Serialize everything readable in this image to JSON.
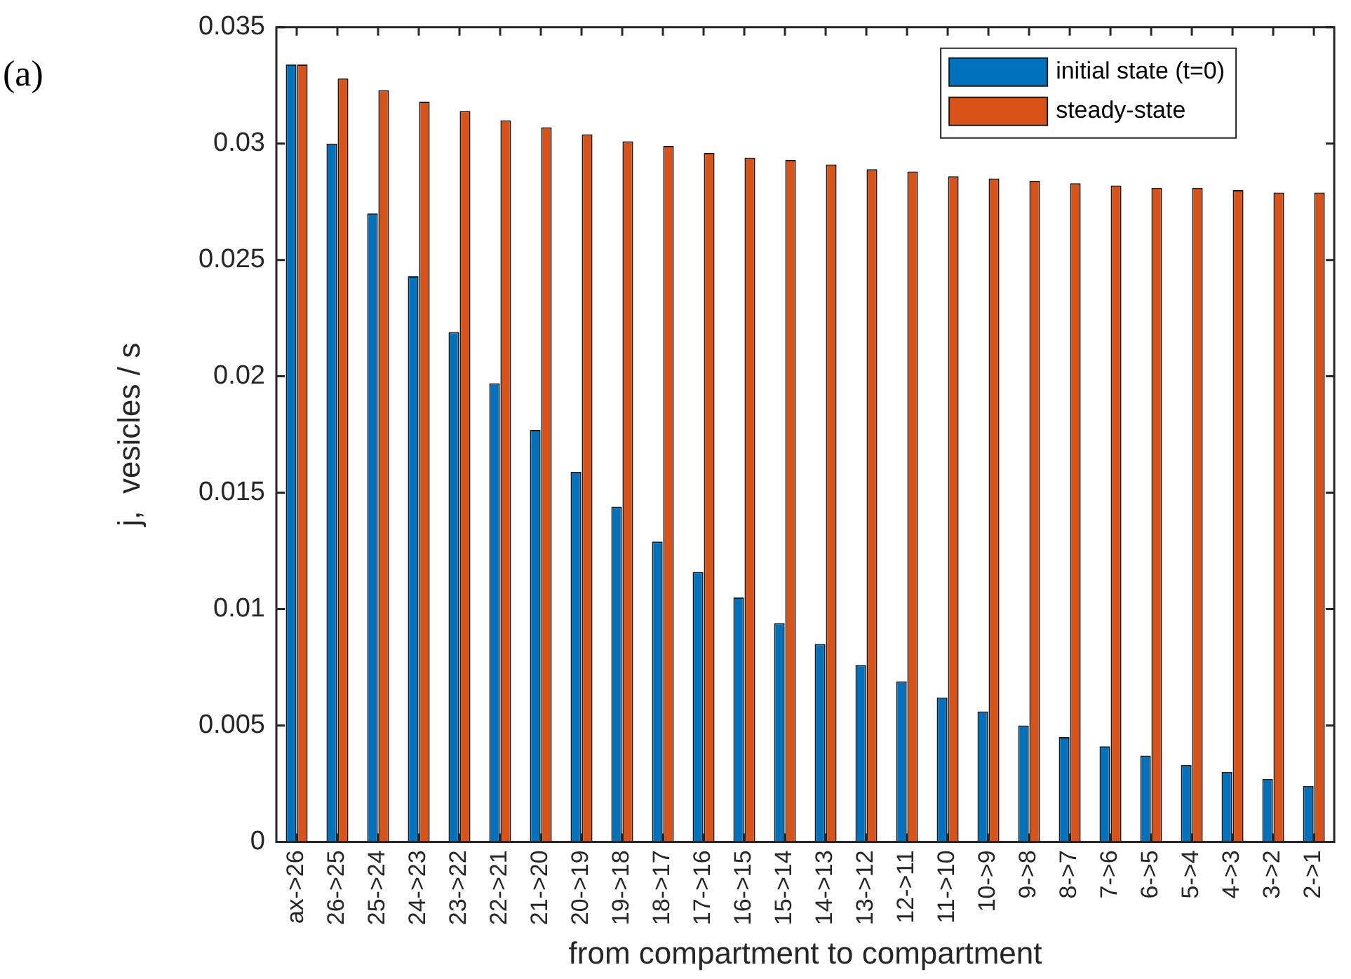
{
  "chart_data": {
    "type": "bar",
    "xlabel": "from compartment to compartment",
    "ylabel": "j,  vesicles / s",
    "categories": [
      "ax->26",
      "26->25",
      "25->24",
      "24->23",
      "23->22",
      "22->21",
      "21->20",
      "20->19",
      "19->18",
      "18->17",
      "17->16",
      "16->15",
      "15->14",
      "14->13",
      "13->12",
      "12->11",
      "11->10",
      "10->9",
      "9->8",
      "8->7",
      "7->6",
      "6->5",
      "5->4",
      "4->3",
      "3->2",
      "2->1"
    ],
    "series": [
      {
        "name": "initial state (t=0)",
        "color": "#0072bd",
        "values": [
          0.0334,
          0.03,
          0.027,
          0.0243,
          0.0219,
          0.0197,
          0.0177,
          0.0159,
          0.0144,
          0.0129,
          0.0116,
          0.0105,
          0.0094,
          0.0085,
          0.0076,
          0.0069,
          0.0062,
          0.0056,
          0.005,
          0.0045,
          0.0041,
          0.0037,
          0.0033,
          0.003,
          0.0027,
          0.0024
        ]
      },
      {
        "name": "steady-state",
        "color": "#d95319",
        "values": [
          0.0334,
          0.0328,
          0.0323,
          0.0318,
          0.0314,
          0.031,
          0.0307,
          0.0304,
          0.0301,
          0.0299,
          0.0296,
          0.0294,
          0.0293,
          0.0291,
          0.0289,
          0.0288,
          0.0286,
          0.0285,
          0.0284,
          0.0283,
          0.0282,
          0.0281,
          0.0281,
          0.028,
          0.0279,
          0.0279
        ]
      }
    ],
    "ylim": [
      0,
      0.035
    ],
    "yticks": [
      0,
      0.005,
      0.01,
      0.015,
      0.02,
      0.025,
      0.03,
      0.035
    ],
    "grid": false,
    "legend": "top right",
    "annotations": [
      "(a)"
    ]
  }
}
